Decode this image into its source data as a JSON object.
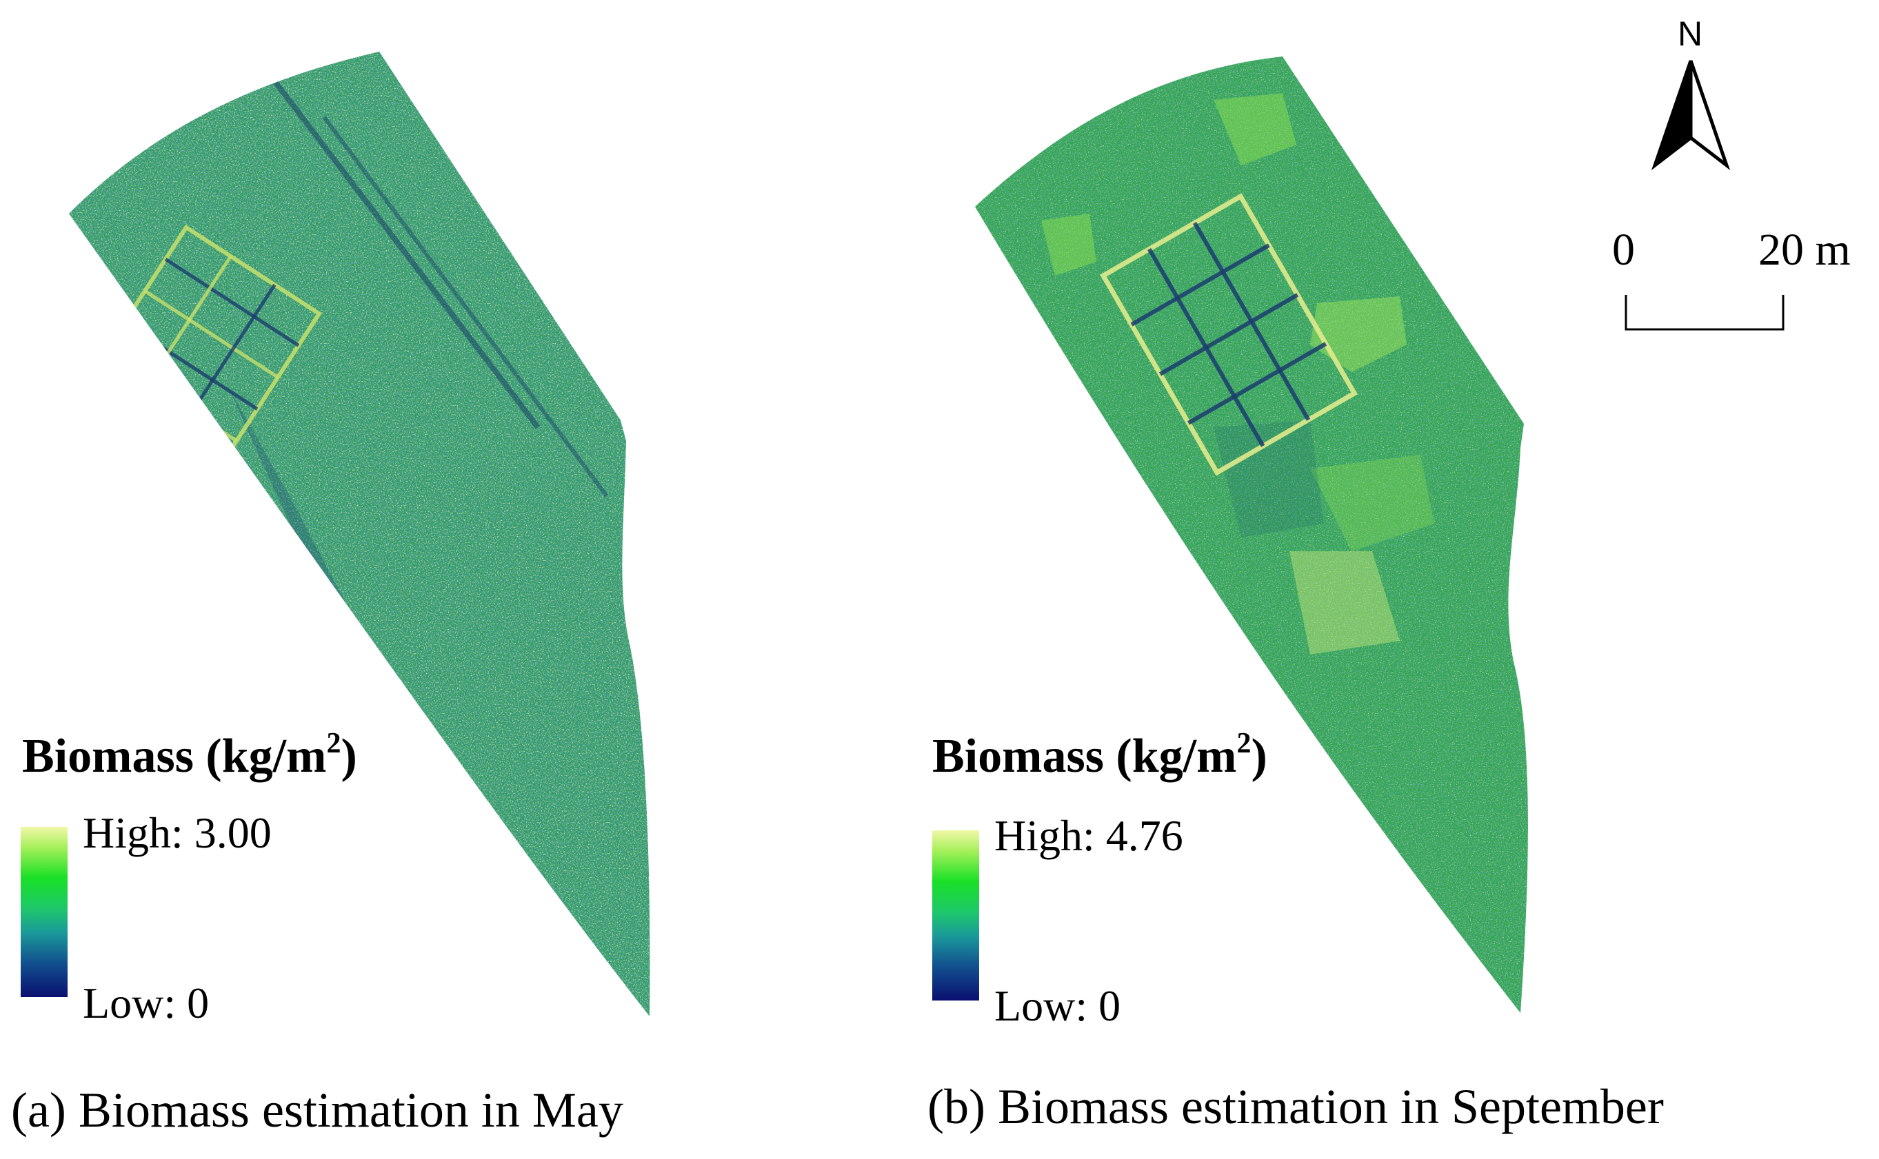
{
  "north_arrow": {
    "letter": "N",
    "icon": "north-arrow-icon"
  },
  "scale_bar": {
    "start_label": "0",
    "end_label": "20 m"
  },
  "panels": [
    {
      "legend": {
        "title": "Biomass (kg/m",
        "title_sup": "2",
        "title_close": ")",
        "high_label": "High: 3.00",
        "low_label": "Low: 0"
      },
      "caption": "(a) Biomass estimation in May",
      "colors": {
        "base": "#2f9a58",
        "dark": "#1b5a78",
        "light": "#8fdc4a",
        "pale": "#d9f08a"
      }
    },
    {
      "legend": {
        "title": "Biomass (kg/m",
        "title_sup": "2",
        "title_close": ")",
        "high_label": "High: 4.76",
        "low_label": "Low: 0"
      },
      "caption": "(b) Biomass estimation in September",
      "colors": {
        "base": "#33a650",
        "dark": "#1f6a70",
        "light": "#72d840",
        "pale": "#c8ec7a"
      }
    }
  ],
  "colormap": {
    "high": "#f2f7a8",
    "mid_high": "#19e026",
    "mid": "#1ec86a",
    "mid_low": "#1a9a9a",
    "low": "#0a1070"
  }
}
